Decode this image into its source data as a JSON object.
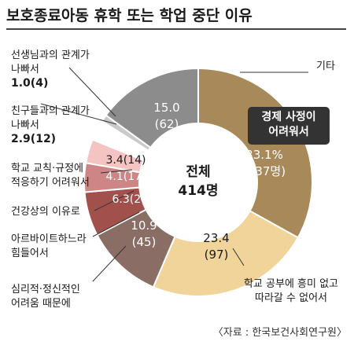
{
  "chart_data": {
    "type": "pie",
    "donut": true,
    "title": "보호종료아동 휴학 또는 학업 중단 이유",
    "center_label": "전체",
    "center_total": "414명",
    "source": "〈자료 : 한국보건사회연구원〉",
    "slices": [
      {
        "name": "경제 사정이 어려워서",
        "value": 33.1,
        "count": 137,
        "label_pct": "33.1%",
        "label_count": "(137명)",
        "color": "#a8895a",
        "label_lines": [
          "경제 사정이",
          "어려워서"
        ],
        "highlight": true
      },
      {
        "name": "학교 공부에 흥미 없고 따라갈 수 없어서",
        "value": 23.4,
        "count": 97,
        "label_pct": "23.4",
        "label_count": "(97)",
        "color": "#f1d49a",
        "label_lines": [
          "학교 공부에 흥미 없고",
          "따라갈 수 없어서"
        ]
      },
      {
        "name": "심리적·정신적인 어려움 때문에",
        "value": 10.9,
        "count": 45,
        "label_pct": "10.9",
        "label_count": "(45)",
        "color": "#8a6e65",
        "label_lines": [
          "심리적·정신적인",
          "어려움 때문에"
        ]
      },
      {
        "name": "아르바이트하느라 힘들어서",
        "value": 6.3,
        "count": 26,
        "label_pct": "6.3(26)",
        "label_count": "",
        "color": "#a2504c",
        "label_lines": [
          "아르바이트하느라",
          "힘들어서"
        ]
      },
      {
        "name": "건강상의 이유로",
        "value": 4.1,
        "count": 17,
        "label_pct": "4.1(17)",
        "label_count": "",
        "color": "#cd8585",
        "label_lines": [
          "건강상의 이유로"
        ]
      },
      {
        "name": "학교 교칙·규정에 적응하기 어려워서",
        "value": 3.4,
        "count": 14,
        "label_pct": "3.4(14)",
        "label_count": "",
        "color": "#f3c4c1",
        "label_lines": [
          "학교 교칙·규정에",
          "적응하기 어려워서"
        ]
      },
      {
        "name": "친구들과의 관계가 나빠서",
        "value": 2.9,
        "count": 12,
        "label_pct": "2.9(12)",
        "label_count": "",
        "color": "#ffffff",
        "label_lines": [
          "친구들과의 관계가",
          "나빠서"
        ]
      },
      {
        "name": "선생님과의 관계가 나빠서",
        "value": 1.0,
        "count": 4,
        "label_pct": "1.0(4)",
        "label_count": "",
        "color": "#c9c9c9",
        "label_lines": [
          "선생님과의 관계가",
          "나빠서"
        ]
      },
      {
        "name": "기타",
        "value": 15.0,
        "count": 62,
        "label_pct": "15.0",
        "label_count": "(62)",
        "color": "#8c8c8c",
        "label_lines": [
          "기타"
        ]
      }
    ]
  }
}
